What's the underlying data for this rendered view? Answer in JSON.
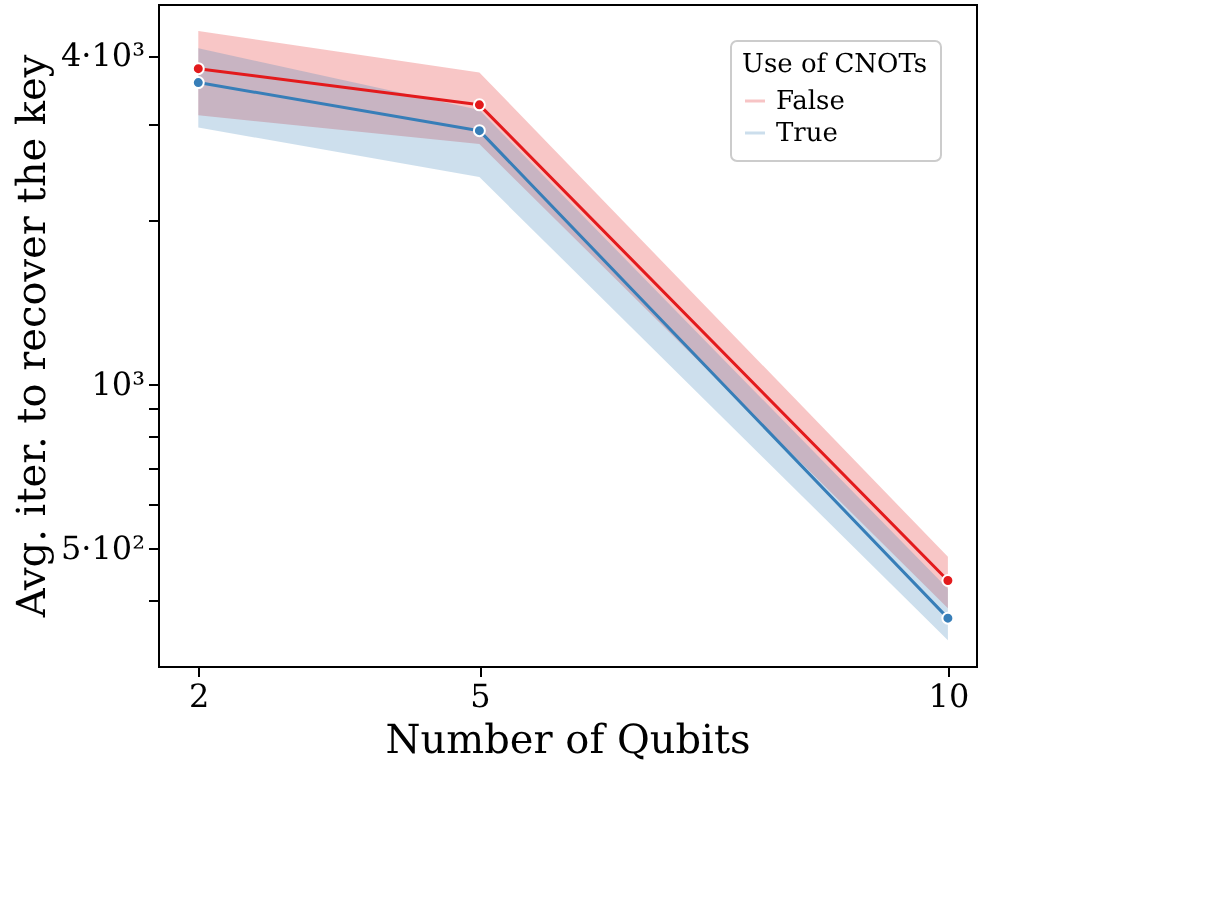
{
  "chart_data": {
    "type": "line",
    "xlabel": "Number of Qubits",
    "ylabel": "Avg. iter. to recover the key",
    "legend_title": "Use of CNOTs",
    "x": [
      2,
      5,
      10
    ],
    "series": [
      {
        "name": "False",
        "color": "#e31a1c",
        "values": [
          3780,
          3245,
          436
        ],
        "lower": [
          3105,
          2750,
          388
        ],
        "upper": [
          4430,
          3720,
          482
        ]
      },
      {
        "name": "True",
        "color": "#377eb8",
        "values": [
          3565,
          2910,
          372
        ],
        "lower": [
          2950,
          2392,
          339
        ],
        "upper": [
          4120,
          3175,
          421
        ]
      }
    ],
    "log": "y",
    "xlim": [
      1.57,
      10.3
    ],
    "xticks": [
      2,
      5,
      10
    ],
    "ylim": [
      304,
      4966
    ],
    "yticks": [
      {
        "value": 400,
        "label": null
      },
      {
        "value": 500,
        "label": "5·10²"
      },
      {
        "value": 600,
        "label": null
      },
      {
        "value": 700,
        "label": null
      },
      {
        "value": 800,
        "label": null
      },
      {
        "value": 900,
        "label": null
      },
      {
        "value": 1000,
        "label": "10³"
      },
      {
        "value": 2000,
        "label": null
      },
      {
        "value": 3000,
        "label": null
      },
      {
        "value": 4000,
        "label": "4·10³"
      }
    ],
    "marker": "circle",
    "line_style": "solid",
    "legend": "top right",
    "grid": false
  }
}
